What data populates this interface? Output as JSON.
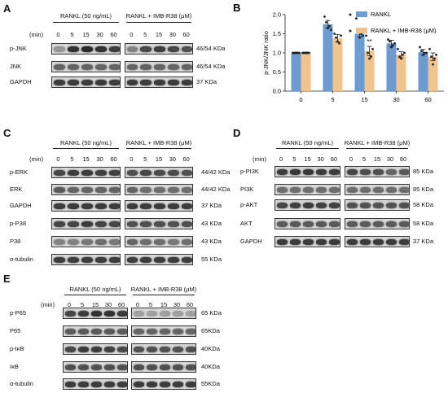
{
  "conditions": {
    "rankl": "RANKL (50 ng/mL)",
    "rankl_imb": "RANKL + IMB-R38 (μM)"
  },
  "time_label": "(min)",
  "lanes": [
    "0",
    "5",
    "15",
    "30",
    "60"
  ],
  "panels": [
    {
      "id": "A",
      "label": "A",
      "rows": [
        {
          "name": "p-JNK",
          "kda": "46/54 KDa",
          "intensity": [
            0.35,
            0.85,
            0.9,
            0.85,
            0.8,
            0.45,
            0.75,
            0.8,
            0.75,
            0.7
          ]
        },
        {
          "name": "JNK",
          "kda": "46/54 KDa",
          "intensity": [
            0.6,
            0.6,
            0.6,
            0.6,
            0.6,
            0.6,
            0.6,
            0.6,
            0.6,
            0.6
          ]
        },
        {
          "name": "GAPDH",
          "kda": "37 KDa",
          "intensity": [
            0.8,
            0.8,
            0.8,
            0.8,
            0.8,
            0.8,
            0.8,
            0.8,
            0.8,
            0.8
          ]
        }
      ]
    },
    {
      "id": "C",
      "label": "C",
      "rows": [
        {
          "name": "p-ERK",
          "kda": "44/42 KDa",
          "intensity": [
            0.75,
            0.8,
            0.8,
            0.78,
            0.78,
            0.7,
            0.75,
            0.72,
            0.72,
            0.7
          ]
        },
        {
          "name": "ERK",
          "kda": "44/42 KDa",
          "intensity": [
            0.65,
            0.6,
            0.6,
            0.6,
            0.6,
            0.6,
            0.55,
            0.55,
            0.55,
            0.55
          ]
        },
        {
          "name": "GAPDH",
          "kda": "37 KDa",
          "intensity": [
            0.8,
            0.8,
            0.8,
            0.8,
            0.8,
            0.8,
            0.8,
            0.8,
            0.8,
            0.8
          ]
        },
        {
          "name": "p-P38",
          "kda": "43 KDa",
          "intensity": [
            0.75,
            0.75,
            0.8,
            0.75,
            0.75,
            0.7,
            0.7,
            0.7,
            0.7,
            0.7
          ]
        },
        {
          "name": "P38",
          "kda": "43 KDa",
          "intensity": [
            0.45,
            0.45,
            0.5,
            0.55,
            0.5,
            0.6,
            0.55,
            0.55,
            0.5,
            0.55
          ]
        },
        {
          "name": "α-tubulin",
          "kda": "55 KDa",
          "intensity": [
            0.8,
            0.8,
            0.8,
            0.8,
            0.8,
            0.8,
            0.8,
            0.8,
            0.8,
            0.8
          ]
        }
      ]
    },
    {
      "id": "D",
      "label": "D",
      "rows": [
        {
          "name": "p-PI3K",
          "kda": "85 KDa",
          "intensity": [
            0.8,
            0.82,
            0.82,
            0.8,
            0.8,
            0.75,
            0.72,
            0.7,
            0.6,
            0.65
          ]
        },
        {
          "name": "PI3K",
          "kda": "85 KDa",
          "intensity": [
            0.55,
            0.55,
            0.55,
            0.55,
            0.55,
            0.55,
            0.55,
            0.55,
            0.55,
            0.55
          ]
        },
        {
          "name": "p-AKT",
          "kda": "58 KDa",
          "intensity": [
            0.75,
            0.78,
            0.8,
            0.78,
            0.78,
            0.7,
            0.7,
            0.68,
            0.68,
            0.7
          ]
        },
        {
          "name": "AKT",
          "kda": "58 KDa",
          "intensity": [
            0.65,
            0.65,
            0.65,
            0.65,
            0.65,
            0.65,
            0.65,
            0.65,
            0.65,
            0.65
          ]
        },
        {
          "name": "GAPDH",
          "kda": "37 KDa",
          "intensity": [
            0.8,
            0.8,
            0.8,
            0.8,
            0.8,
            0.8,
            0.8,
            0.8,
            0.8,
            0.8
          ]
        }
      ]
    },
    {
      "id": "E",
      "label": "E",
      "rows": [
        {
          "name": "p-P65",
          "kda": "65 KDa",
          "intensity": [
            0.75,
            0.8,
            0.85,
            0.85,
            0.8,
            0.3,
            0.3,
            0.3,
            0.3,
            0.3
          ]
        },
        {
          "name": "P65",
          "kda": "65KDa",
          "intensity": [
            0.65,
            0.65,
            0.65,
            0.65,
            0.65,
            0.6,
            0.6,
            0.6,
            0.6,
            0.6
          ]
        },
        {
          "name": "p-IκB",
          "kda": "40KDa",
          "intensity": [
            0.75,
            0.8,
            0.8,
            0.78,
            0.75,
            0.7,
            0.7,
            0.7,
            0.7,
            0.7
          ]
        },
        {
          "name": "IκB",
          "kda": "40KDa",
          "intensity": [
            0.7,
            0.7,
            0.7,
            0.7,
            0.7,
            0.7,
            0.7,
            0.7,
            0.7,
            0.7
          ]
        },
        {
          "name": "α-tubulin",
          "kda": "55KDa",
          "intensity": [
            0.8,
            0.8,
            0.8,
            0.8,
            0.8,
            0.8,
            0.8,
            0.8,
            0.8,
            0.8
          ]
        }
      ]
    }
  ],
  "chart_data": {
    "type": "bar",
    "panel_label": "B",
    "title": "",
    "xlabel": "",
    "ylabel": "p-JNK/JNK ratio",
    "categories": [
      "0",
      "5",
      "15",
      "30",
      "60"
    ],
    "ylim": [
      0,
      2.0
    ],
    "yticks": [
      "0.0",
      "0.5",
      "1.0",
      "1.5",
      "2.0"
    ],
    "legend_position": "top-right",
    "series": [
      {
        "name": "RANKL",
        "color": "#6b9bd1",
        "values": [
          1.0,
          1.75,
          1.5,
          1.25,
          1.02
        ],
        "errors": [
          0.02,
          0.1,
          0.08,
          0.08,
          0.07
        ],
        "points": [
          [
            1,
            1,
            1,
            1,
            1
          ],
          [
            1.95,
            1.8,
            1.65,
            1.7,
            1.6
          ],
          [
            1.9,
            1.55,
            1.4,
            1.5,
            1.45
          ],
          [
            1.35,
            1.3,
            1.15,
            1.2,
            1.25
          ],
          [
            1.15,
            1.05,
            0.95,
            1.0,
            1.0
          ]
        ]
      },
      {
        "name": "RANKL + IMB-R38 (μM)",
        "color": "#f2c48d",
        "values": [
          1.0,
          1.38,
          1.05,
          0.95,
          0.9
        ],
        "errors": [
          0.02,
          0.1,
          0.12,
          0.08,
          0.1
        ],
        "points": [
          [
            1,
            1,
            1,
            1,
            1
          ],
          [
            1.5,
            1.4,
            1.3,
            1.25,
            1.45
          ],
          [
            1.45,
            1.0,
            0.85,
            0.9,
            1.1
          ],
          [
            1.1,
            0.9,
            0.85,
            0.95,
            1.0
          ],
          [
            1.1,
            0.9,
            0.7,
            0.85,
            0.95
          ]
        ]
      }
    ],
    "significance": [
      "",
      "",
      "**",
      "",
      ""
    ]
  }
}
